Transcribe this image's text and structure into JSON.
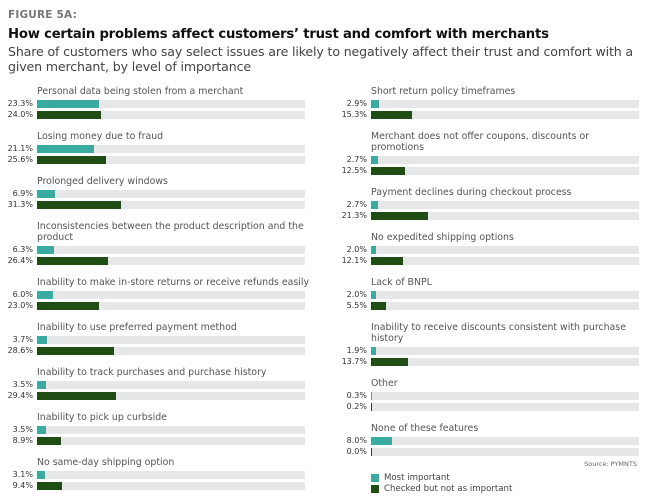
{
  "figure_label": "FIGURE 5A:",
  "chart_data": {
    "type": "bar",
    "orientation": "horizontal",
    "title": "How certain problems affect customers’ trust and comfort with merchants",
    "subtitle": "Share of customers who say select issues are likely to negatively affect their trust and comfort with a given merchant, by level of importance",
    "xlim": [
      0,
      100
    ],
    "value_format": "percent",
    "series": [
      {
        "name": "Most important",
        "color": "#3aaba0"
      },
      {
        "name": "Checked but not as important",
        "color": "#1f4d14"
      }
    ],
    "columns": [
      [
        {
          "category": "Personal data being stolen from a merchant",
          "values": [
            23.3,
            24.0
          ],
          "labels": [
            "23.3%",
            "24.0%"
          ]
        },
        {
          "category": "Losing money due to fraud",
          "values": [
            21.1,
            25.6
          ],
          "labels": [
            "21.1%",
            "25.6%"
          ]
        },
        {
          "category": "Prolonged delivery windows",
          "values": [
            6.9,
            31.3
          ],
          "labels": [
            "6.9%",
            "31.3%"
          ]
        },
        {
          "category": "Inconsistencies between the product description and the product",
          "line1": "Inconsistencies between the product description and the",
          "line2": "product",
          "values": [
            6.3,
            26.4
          ],
          "labels": [
            "6.3%",
            "26.4%"
          ]
        },
        {
          "category": "Inability to make in-store returns or receive refunds easily",
          "values": [
            6.0,
            23.0
          ],
          "labels": [
            "6.0%",
            "23.0%"
          ]
        },
        {
          "category": "Inability to use preferred payment method",
          "values": [
            3.7,
            28.6
          ],
          "labels": [
            "3.7%",
            "28.6%"
          ]
        },
        {
          "category": "Inability to track purchases and purchase history",
          "values": [
            3.5,
            29.4
          ],
          "labels": [
            "3.5%",
            "29.4%"
          ]
        },
        {
          "category": "Inability to pick up curbside",
          "values": [
            3.5,
            8.9
          ],
          "labels": [
            "3.5%",
            "8.9%"
          ]
        },
        {
          "category": "No same-day shipping option",
          "values": [
            3.1,
            9.4
          ],
          "labels": [
            "3.1%",
            "9.4%"
          ]
        }
      ],
      [
        {
          "category": "Short return policy timeframes",
          "values": [
            2.9,
            15.3
          ],
          "labels": [
            "2.9%",
            "15.3%"
          ]
        },
        {
          "category": "Merchant does not offer coupons, discounts or promotions",
          "line1": "Merchant does not offer coupons, discounts or",
          "line2": "promotions",
          "values": [
            2.7,
            12.5
          ],
          "labels": [
            "2.7%",
            "12.5%"
          ]
        },
        {
          "category": "Payment declines during checkout process",
          "values": [
            2.7,
            21.3
          ],
          "labels": [
            "2.7%",
            "21.3%"
          ]
        },
        {
          "category": "No expedited shipping options",
          "values": [
            2.0,
            12.1
          ],
          "labels": [
            "2.0%",
            "12.1%"
          ]
        },
        {
          "category": "Lack of BNPL",
          "values": [
            2.0,
            5.5
          ],
          "labels": [
            "2.0%",
            "5.5%"
          ]
        },
        {
          "category": "Inability to receive discounts consistent with purchase history",
          "line1": "Inability to receive discounts consistent with purchase",
          "line2": "history",
          "values": [
            1.9,
            13.7
          ],
          "labels": [
            "1.9%",
            "13.7%"
          ]
        },
        {
          "category": "Other",
          "values": [
            0.3,
            0.2
          ],
          "labels": [
            "0.3%",
            "0.2%"
          ]
        },
        {
          "category": "None of these features",
          "values": [
            8.0,
            0.0
          ],
          "labels": [
            "8.0%",
            "0.0%"
          ]
        }
      ]
    ],
    "source": "Source: PYMNTS",
    "legend_position": "bottom-right",
    "grid": false
  }
}
